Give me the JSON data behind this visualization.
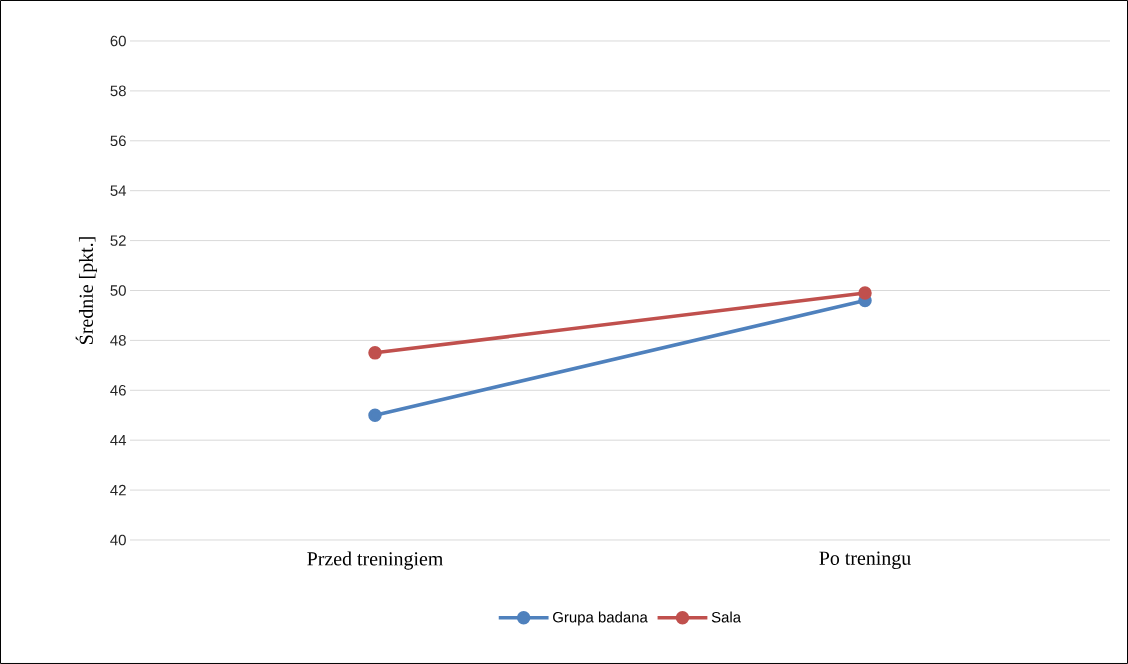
{
  "chart_data": {
    "type": "line",
    "ylabel": "Średnie [pkt.]",
    "categories": [
      "Przed treningiem",
      "Po treningu"
    ],
    "series": [
      {
        "name": "Grupa badana",
        "color": "#4f81bd",
        "values": [
          45.0,
          49.6
        ]
      },
      {
        "name": "Sala",
        "color": "#c0504d",
        "values": [
          47.5,
          49.9
        ]
      }
    ],
    "ylim": [
      40,
      60
    ],
    "yticks": [
      40,
      42,
      44,
      46,
      48,
      50,
      52,
      54,
      56,
      58,
      60
    ],
    "grid": "y",
    "legend": "bottom",
    "marker": "circle",
    "line_style": "solid"
  }
}
